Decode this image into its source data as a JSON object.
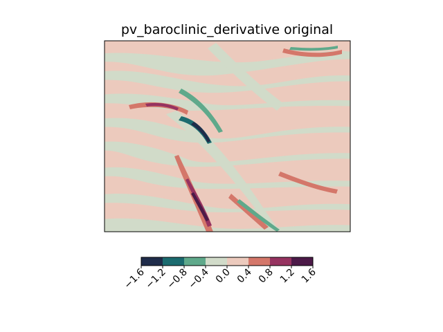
{
  "chart_data": {
    "type": "heatmap",
    "title": "pv_baroclinic_derivative original",
    "xlabel": "",
    "ylabel": "",
    "axes_ticks": "none",
    "grid": false,
    "colorbar": {
      "orientation": "horizontal",
      "placement": "bottom",
      "levels": [
        -1.6,
        -1.2,
        -0.8,
        -0.4,
        0.0,
        0.4,
        0.8,
        1.2,
        1.6
      ],
      "tick_labels": [
        "−1.6",
        "−1.2",
        "−0.8",
        "−0.4",
        "0.0",
        "0.4",
        "0.8",
        "1.2",
        "1.6"
      ],
      "colors": [
        "#1f2c4a",
        "#1b6b6f",
        "#5fa98b",
        "#d1dbc9",
        "#eccabd",
        "#d4776a",
        "#963360",
        "#4c1a48"
      ],
      "tick_rotation_deg": 45
    },
    "field_description": {
      "dominant_levels": [
        -0.4,
        0.4
      ],
      "notable_features": [
        {
          "value_range": [
            0.8,
            1.6
          ],
          "sign": "positive",
          "location": "lower-left-center elongated filament"
        },
        {
          "value_range": [
            0.8,
            1.2
          ],
          "sign": "positive",
          "location": "upper-left filament"
        },
        {
          "value_range": [
            -1.6,
            -0.8
          ],
          "sign": "negative",
          "location": "upper-center curved streak"
        },
        {
          "value_range": [
            0.4,
            0.8
          ],
          "sign": "positive",
          "location": "right-center streaks"
        }
      ]
    }
  }
}
